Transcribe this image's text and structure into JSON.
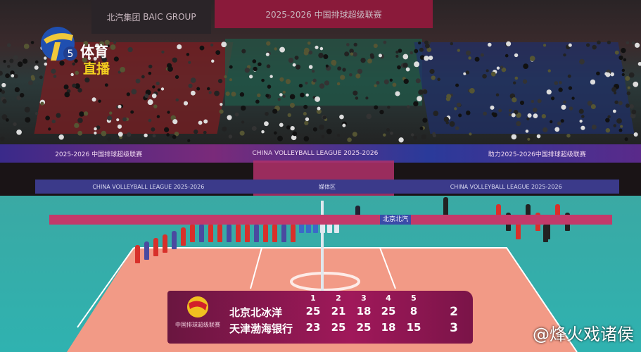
{
  "broadcast": {
    "channel_number": "5",
    "channel_name": "体育",
    "live_label": "直播",
    "watermark": "@烽火戏诸侯"
  },
  "arena_banners": {
    "sponsor_cn": "北汽集团",
    "sponsor_en": "BAIC GROUP",
    "league_top": "2025-2026 中国排球超级联赛",
    "league_en": "CHINA VOLLEYBALL LEAGUE 2025-2026",
    "slogan": "助力2025-2026中国排球超级联赛",
    "zone": "媒体区",
    "court_text": "北京北汽"
  },
  "scoreboard": {
    "league_logo_text": "中国排球超级联赛",
    "set_headers": [
      "1",
      "2",
      "3",
      "4",
      "5"
    ],
    "teams": [
      {
        "name": "北京北冰洋",
        "sets": [
          25,
          21,
          18,
          25,
          8
        ],
        "total": 2
      },
      {
        "name": "天津渤海银行",
        "sets": [
          23,
          25,
          25,
          18,
          15
        ],
        "total": 3
      }
    ]
  },
  "colors": {
    "scoreboard": "#a0185a",
    "court_outer": "#2fb2b0",
    "court_inner": "#f29a86"
  }
}
